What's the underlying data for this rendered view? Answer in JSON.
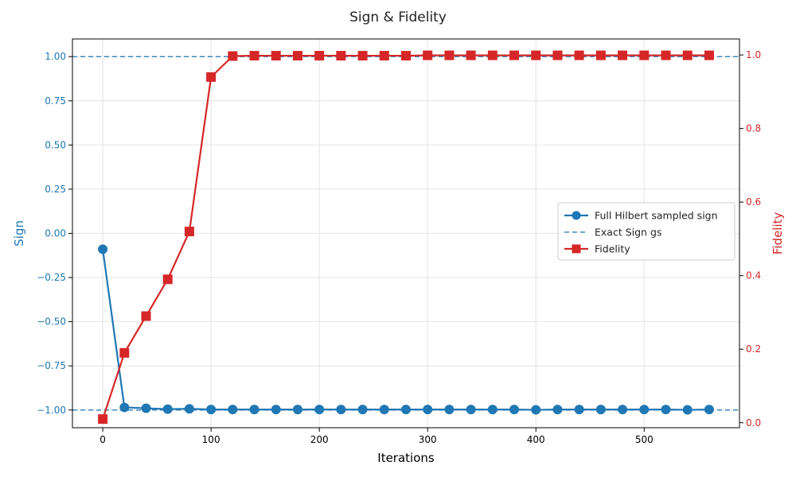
{
  "chart_data": {
    "type": "line",
    "title": "Sign & Fidelity",
    "xlabel": "Iterations",
    "ylabel_left": "Sign",
    "ylabel_right": "Fidelity",
    "xlim": [
      -28,
      588
    ],
    "ylim_left": [
      -1.1,
      1.1
    ],
    "ylim_right": [
      -0.0135,
      1.0435
    ],
    "xticks": [
      0,
      100,
      200,
      300,
      400,
      500
    ],
    "yticks_left": [
      -1.0,
      -0.75,
      -0.5,
      -0.25,
      0.0,
      0.25,
      0.5,
      0.75,
      1.0
    ],
    "yticks_left_labels": [
      "−1.00",
      "−0.75",
      "−0.50",
      "−0.25",
      "0.00",
      "0.25",
      "0.50",
      "0.75",
      "1.00"
    ],
    "yticks_right": [
      0.0,
      0.2,
      0.4,
      0.6,
      0.8,
      1.0
    ],
    "yticks_right_labels": [
      "0.0",
      "0.2",
      "0.4",
      "0.6",
      "0.8",
      "1.0"
    ],
    "grid": true,
    "legend_position": "center-right",
    "colors": {
      "sign": "#1f77b4",
      "fidelity": "#d62728",
      "exact": "#1f77b4"
    },
    "x": [
      0,
      20,
      40,
      60,
      80,
      100,
      120,
      140,
      160,
      180,
      200,
      220,
      240,
      260,
      280,
      300,
      320,
      340,
      360,
      380,
      400,
      420,
      440,
      460,
      480,
      500,
      520,
      540,
      560
    ],
    "series": [
      {
        "name": "Full Hilbert sampled sign",
        "axis": "left",
        "marker": "circle",
        "values": [
          -0.09,
          -0.985,
          -0.99,
          -0.995,
          -0.993,
          -0.997,
          -0.997,
          -0.997,
          -0.997,
          -0.997,
          -0.997,
          -0.997,
          -0.997,
          -0.997,
          -0.997,
          -0.997,
          -0.997,
          -0.997,
          -0.997,
          -0.997,
          -0.999,
          -0.997,
          -0.997,
          -0.997,
          -0.997,
          -0.997,
          -0.997,
          -0.999,
          -0.997
        ]
      },
      {
        "name": "Fidelity",
        "axis": "right",
        "marker": "square",
        "values": [
          0.01,
          0.19,
          0.29,
          0.39,
          0.52,
          0.94,
          0.997,
          0.998,
          0.998,
          0.998,
          0.998,
          0.998,
          0.998,
          0.998,
          0.998,
          0.999,
          0.999,
          0.999,
          0.999,
          0.999,
          0.999,
          0.999,
          0.999,
          0.999,
          0.999,
          0.999,
          0.999,
          0.999,
          0.999
        ]
      }
    ],
    "reference_lines": [
      {
        "name": "Exact Sign gs",
        "axis": "left",
        "values": [
          1.0,
          -1.0
        ],
        "style": "dashed"
      }
    ]
  }
}
